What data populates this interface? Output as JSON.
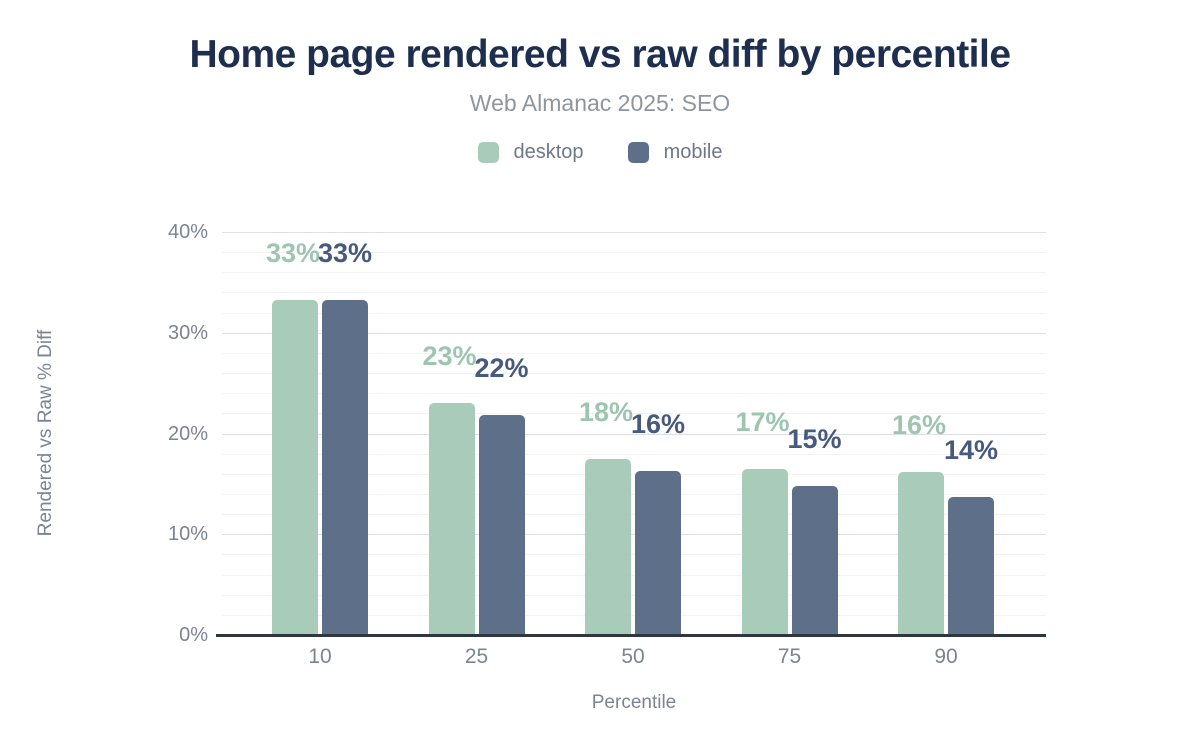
{
  "header": {
    "title": "Home page rendered vs raw diff by percentile",
    "subtitle": "Web Almanac 2025: SEO"
  },
  "legend": {
    "items": [
      {
        "label": "desktop",
        "color": "#a9ccba"
      },
      {
        "label": "mobile",
        "color": "#5e6f89"
      }
    ]
  },
  "chart_data": {
    "type": "bar",
    "title": "Home page rendered vs raw diff by percentile",
    "subtitle": "Web Almanac 2025: SEO",
    "categories": [
      "10",
      "25",
      "50",
      "75",
      "90"
    ],
    "series": [
      {
        "name": "desktop",
        "color": "#a9ccba",
        "label_color": "#9ec5b0",
        "values": [
          33,
          23,
          18,
          17,
          16
        ],
        "labels": [
          "33%",
          "23%",
          "18%",
          "17%",
          "16%"
        ],
        "bar_heights_pct": [
          33.3,
          23.0,
          17.5,
          16.5,
          16.2
        ]
      },
      {
        "name": "mobile",
        "color": "#5e6f89",
        "label_color": "#47597c",
        "values": [
          33,
          22,
          16,
          15,
          14
        ],
        "labels": [
          "33%",
          "22%",
          "16%",
          "15%",
          "14%"
        ],
        "bar_heights_pct": [
          33.3,
          21.8,
          16.3,
          14.8,
          13.7
        ]
      }
    ],
    "xlabel": "Percentile",
    "ylabel": "Rendered vs Raw % Diff",
    "ylim": [
      0,
      40
    ],
    "yticks": [
      {
        "label": "0%",
        "value": 0
      },
      {
        "label": "10%",
        "value": 10
      },
      {
        "label": "20%",
        "value": 20
      },
      {
        "label": "30%",
        "value": 30
      },
      {
        "label": "40%",
        "value": 40
      }
    ],
    "grid": {
      "major_step": 10,
      "minor_step": 2,
      "major_color": "#dcdfe3",
      "minor_color": "#f5f3f2"
    },
    "legend_position": "top",
    "axis_line_color": "#30363d",
    "tick_color": "#7b8494"
  }
}
